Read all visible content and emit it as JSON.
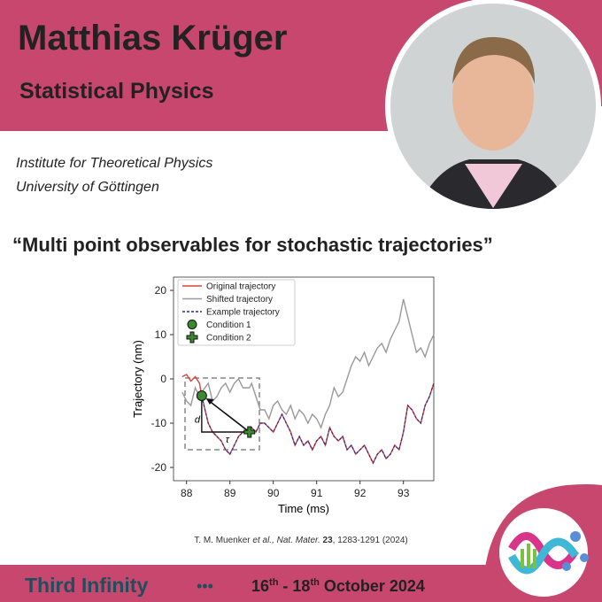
{
  "header": {
    "name": "Matthias Krüger",
    "field": "Statistical Physics"
  },
  "affiliation": [
    "Institute for Theoretical Physics",
    "University of Göttingen"
  ],
  "talk_title": "“Multi point observables for stochastic trajectories”",
  "chart_data": {
    "type": "line",
    "x_label": "Time (ms)",
    "y_label": "Trajectory (nm)",
    "xlim": [
      87.7,
      93.7
    ],
    "ylim": [
      -23,
      23
    ],
    "xticks": [
      88,
      89,
      90,
      91,
      92,
      93
    ],
    "yticks": [
      -20,
      -10,
      0,
      10,
      20
    ],
    "x": [
      87.9,
      88.0,
      88.1,
      88.2,
      88.3,
      88.35,
      88.5,
      88.6,
      88.7,
      88.8,
      88.9,
      89.0,
      89.1,
      89.2,
      89.3,
      89.45,
      89.5,
      89.6,
      89.7,
      89.8,
      89.9,
      90.0,
      90.1,
      90.2,
      90.3,
      90.4,
      90.5,
      90.6,
      90.7,
      90.8,
      90.9,
      91.0,
      91.1,
      91.2,
      91.3,
      91.4,
      91.5,
      91.6,
      91.7,
      91.8,
      91.9,
      92.0,
      92.1,
      92.2,
      92.3,
      92.4,
      92.5,
      92.6,
      92.7,
      92.8,
      92.9,
      93.0,
      93.1,
      93.2,
      93.3,
      93.4,
      93.5,
      93.6,
      93.7
    ],
    "series": [
      {
        "name": "Original trajectory",
        "color": "#e0403a",
        "dash": false,
        "values": [
          0.5,
          1,
          -0.5,
          0.5,
          -1,
          -3.8,
          -10,
          -12,
          -13,
          -14,
          -16,
          -17,
          -15,
          -13,
          -12,
          -12,
          -11,
          -12,
          -10,
          -10,
          -11,
          -12,
          -10,
          -8,
          -10,
          -12,
          -15,
          -13,
          -15,
          -14,
          -16,
          -14,
          -13,
          -15,
          -11,
          -13,
          -14,
          -13,
          -16,
          -15,
          -17,
          -16,
          -15,
          -17,
          -19,
          -17,
          -16,
          -18,
          -17,
          -15,
          -16,
          -12,
          -6,
          -7,
          -9,
          -10,
          -6,
          -4,
          -1
        ]
      },
      {
        "name": "Shifted trajectory",
        "color": "#999999",
        "dash": false,
        "values": [
          -3,
          -5,
          -6,
          -2,
          -4,
          -3,
          -1,
          -5,
          -4,
          -2,
          -1,
          -3,
          -1,
          0,
          -2,
          -2,
          -1,
          -4,
          -7,
          -7,
          -9,
          -6,
          -5,
          -7,
          -8,
          -6,
          -9,
          -7,
          -8,
          -10,
          -8,
          -9,
          -11,
          -8,
          -6,
          -2,
          -4,
          -3,
          0,
          3,
          5,
          4,
          6,
          3,
          5,
          7,
          8,
          6,
          9,
          11,
          13,
          18,
          14,
          10,
          6,
          7,
          5,
          8,
          10
        ]
      },
      {
        "name": "Example trajectory",
        "color": "#2a2a8c",
        "dash": true,
        "values": [
          null,
          null,
          null,
          null,
          null,
          -3.8,
          -10,
          -12,
          -13,
          -14,
          -16,
          -17,
          -15,
          -13,
          -12,
          -12,
          -11,
          -12,
          -10,
          -10,
          -11,
          -12,
          -10,
          -8,
          -10,
          -12,
          -15,
          -13,
          -15,
          -14,
          -16,
          -14,
          -13,
          -15,
          -11,
          -13,
          -14,
          -13,
          -16,
          -15,
          -17,
          -16,
          -15,
          -17,
          -19,
          -17,
          -16,
          -18,
          -17,
          -15,
          -16,
          -12,
          -6,
          -7,
          -9,
          -10,
          -6,
          -4,
          -1
        ]
      }
    ],
    "markers": [
      {
        "name": "Condition 1",
        "shape": "circle",
        "color": "#3c8a30",
        "x": 88.35,
        "y": -3.8
      },
      {
        "name": "Condition 2",
        "shape": "plus",
        "color": "#3c8a30",
        "x": 89.45,
        "y": -12
      }
    ],
    "annotations": [
      "d",
      "τ"
    ]
  },
  "citation": {
    "authors": "T. M. Muenker ",
    "etal": "et al.,",
    "journal": " Nat. Mater.",
    "volume": " 23",
    "rest": ", 1283-1291 (2024)"
  },
  "footer": {
    "brand": "Third Infinity",
    "dots": "•••",
    "date": [
      "16",
      "th",
      " - 18",
      "th",
      " October 2024"
    ]
  }
}
